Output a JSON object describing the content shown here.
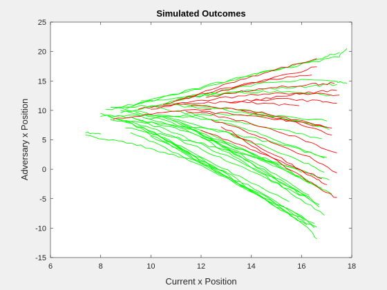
{
  "chart_data": {
    "type": "line",
    "title": "Simulated Outcomes",
    "xlabel": "Current x Position",
    "ylabel": "Adversary x Position",
    "xlim": [
      6,
      18
    ],
    "ylim": [
      -15,
      25
    ],
    "xticks": [
      6,
      8,
      10,
      12,
      14,
      16,
      18
    ],
    "yticks": [
      -15,
      -10,
      -5,
      0,
      5,
      10,
      15,
      20,
      25
    ],
    "grid": false,
    "legend": "none",
    "colors": {
      "series_a": "#00ff00",
      "series_b": "#ff0000",
      "axes_background": "#ffffff",
      "figure_background": "#f0f0f0"
    },
    "series": [
      {
        "color": "#00ff00",
        "traces": [
          {
            "x": [
              7.4,
              8.5,
              9.6,
              10.7,
              11.9,
              13.0
            ],
            "y": [
              5.8,
              4.9,
              4.0,
              2.6,
              1.2,
              -0.4
            ]
          },
          {
            "x": [
              7.4,
              8.0
            ],
            "y": [
              6.2,
              6.0
            ]
          },
          {
            "x": [
              8.0,
              9.2,
              10.5,
              11.8,
              13.2,
              14.6,
              16.0
            ],
            "y": [
              9.5,
              8.8,
              7.5,
              5.8,
              3.9,
              1.8,
              -0.5
            ]
          },
          {
            "x": [
              8.3,
              9.6,
              10.9,
              12.3,
              13.7,
              15.1,
              16.3
            ],
            "y": [
              9.0,
              7.6,
              5.5,
              2.8,
              0.2,
              -2.6,
              -5.0
            ]
          },
          {
            "x": [
              8.6,
              9.9,
              11.2,
              12.6,
              14.0,
              15.5
            ],
            "y": [
              8.6,
              6.6,
              3.9,
              0.8,
              -2.3,
              -5.5
            ]
          },
          {
            "x": [
              9.0,
              10.3,
              11.7,
              13.1,
              14.5,
              16.0,
              16.6
            ],
            "y": [
              8.2,
              5.6,
              2.4,
              -1.1,
              -4.6,
              -8.3,
              -9.8
            ]
          },
          {
            "x": [
              9.5,
              10.8,
              12.2,
              13.6,
              15.0,
              16.2,
              16.6
            ],
            "y": [
              7.4,
              4.5,
              1.0,
              -2.8,
              -6.4,
              -9.6,
              -11.8
            ]
          },
          {
            "x": [
              9.8,
              11.1,
              12.5,
              13.9,
              15.2,
              16.2
            ],
            "y": [
              6.4,
              3.4,
              -0.2,
              -3.6,
              -6.9,
              -9.4
            ]
          },
          {
            "x": [
              10.0,
              11.4,
              12.8,
              14.2,
              15.6,
              16.5
            ],
            "y": [
              5.6,
              2.6,
              -0.8,
              -4.2,
              -7.6,
              -9.9
            ]
          },
          {
            "x": [
              9.2,
              10.6,
              12.0,
              13.5,
              14.9,
              16.2
            ],
            "y": [
              8.9,
              6.7,
              4.2,
              1.4,
              -1.5,
              -4.5
            ]
          },
          {
            "x": [
              8.8,
              10.2,
              11.6,
              13.1,
              14.6,
              16.1,
              16.8
            ],
            "y": [
              10.0,
              8.3,
              6.2,
              3.8,
              1.2,
              -1.8,
              -3.2
            ]
          },
          {
            "x": [
              8.4,
              9.8,
              11.3,
              12.8,
              14.4,
              15.9,
              16.9
            ],
            "y": [
              10.5,
              9.6,
              8.2,
              6.4,
              4.1,
              1.5,
              -0.5
            ]
          },
          {
            "x": [
              8.2,
              9.6,
              11.1,
              12.6,
              14.2,
              15.8,
              17.0
            ],
            "y": [
              10.2,
              10.7,
              10.8,
              10.3,
              9.4,
              8.2,
              7.2
            ]
          },
          {
            "x": [
              8.6,
              10.0,
              11.5,
              13.0,
              14.5,
              16.0,
              17.2
            ],
            "y": [
              10.4,
              11.6,
              12.4,
              13.0,
              13.2,
              13.0,
              12.6
            ]
          },
          {
            "x": [
              9.0,
              10.4,
              11.9,
              13.4,
              14.9,
              16.3,
              17.5,
              17.8
            ],
            "y": [
              10.3,
              12.1,
              13.8,
              15.4,
              16.8,
              18.1,
              19.2,
              20.5
            ]
          },
          {
            "x": [
              8.8,
              10.1,
              11.5,
              13.0,
              14.5,
              16.0,
              17.4,
              17.8
            ],
            "y": [
              9.6,
              10.8,
              12.1,
              13.5,
              14.6,
              15.2,
              14.9,
              14.6
            ]
          },
          {
            "x": [
              8.0,
              9.4,
              10.8,
              12.3,
              13.8,
              15.3,
              16.8
            ],
            "y": [
              9.0,
              9.1,
              9.0,
              8.6,
              7.8,
              6.6,
              5.2
            ]
          },
          {
            "x": [
              8.4,
              9.8,
              11.2,
              12.7,
              14.2,
              15.7,
              17.0
            ],
            "y": [
              8.4,
              8.0,
              7.4,
              6.5,
              5.2,
              3.6,
              2.0
            ]
          },
          {
            "x": [
              9.4,
              10.8,
              12.2,
              13.7,
              15.1,
              16.5
            ],
            "y": [
              9.7,
              8.0,
              5.8,
              3.2,
              0.4,
              -2.6
            ]
          },
          {
            "x": [
              10.2,
              11.6,
              13.0,
              14.4,
              15.8,
              16.9
            ],
            "y": [
              10.6,
              9.4,
              7.8,
              5.9,
              3.7,
              1.9
            ]
          },
          {
            "x": [
              10.6,
              12.0,
              13.4,
              14.8,
              16.2,
              17.1
            ],
            "y": [
              11.2,
              10.9,
              10.2,
              9.2,
              7.9,
              6.8
            ]
          },
          {
            "x": [
              11.0,
              12.4,
              13.8,
              15.2,
              16.6,
              17.4
            ],
            "y": [
              11.8,
              12.6,
              13.3,
              13.8,
              14.2,
              14.4
            ]
          },
          {
            "x": [
              9.6,
              11.0,
              12.4,
              13.9,
              15.4,
              16.8,
              17.5
            ],
            "y": [
              11.6,
              12.8,
              14.2,
              15.8,
              17.4,
              18.9,
              19.8
            ]
          },
          {
            "x": [
              10.4,
              11.8,
              13.2,
              14.6,
              16.0,
              17.2
            ],
            "y": [
              9.0,
              6.9,
              4.4,
              1.6,
              -1.4,
              -4.2
            ]
          },
          {
            "x": [
              10.8,
              12.2,
              13.6,
              15.0,
              16.3
            ],
            "y": [
              8.4,
              5.6,
              2.4,
              -1.0,
              -4.4
            ]
          },
          {
            "x": [
              11.2,
              12.6,
              14.0,
              15.4,
              16.7
            ],
            "y": [
              7.8,
              4.6,
              1.1,
              -2.5,
              -6.0
            ]
          },
          {
            "x": [
              9.0,
              10.4,
              11.8,
              13.3,
              14.8,
              16.3,
              17.1
            ],
            "y": [
              7.0,
              5.9,
              4.6,
              3.0,
              1.3,
              -0.6,
              -1.8
            ]
          },
          {
            "x": [
              9.8,
              11.2,
              12.6,
              14.1,
              15.6,
              17.0
            ],
            "y": [
              8.6,
              9.1,
              9.3,
              9.2,
              8.8,
              8.2
            ]
          },
          {
            "x": [
              9.2,
              10.6,
              12.0,
              13.5,
              15.0,
              16.5
            ],
            "y": [
              6.2,
              3.6,
              0.6,
              -2.6,
              -5.9,
              -9.2
            ]
          },
          {
            "x": [
              11.6,
              12.9,
              14.2,
              15.5,
              16.7
            ],
            "y": [
              6.8,
              3.8,
              0.4,
              -3.0,
              -6.4
            ]
          },
          {
            "x": [
              12.0,
              13.3,
              14.6,
              15.8,
              16.9
            ],
            "y": [
              5.4,
              2.2,
              -1.2,
              -4.6,
              -7.8
            ]
          },
          {
            "x": [
              10.6,
              12.0,
              13.4,
              14.8,
              16.1
            ],
            "y": [
              4.8,
              1.8,
              -1.6,
              -5.0,
              -8.4
            ]
          }
        ]
      },
      {
        "color": "#ff0000",
        "traces": [
          {
            "x": [
              10.0,
              11.5,
              13.0,
              14.5,
              16.0,
              17.5
            ],
            "y": [
              10.2,
              11.4,
              12.2,
              12.8,
              12.9,
              12.6
            ]
          },
          {
            "x": [
              10.5,
              12.0,
              13.5,
              15.0,
              16.4
            ],
            "y": [
              11.0,
              12.8,
              14.2,
              15.4,
              16.0
            ]
          },
          {
            "x": [
              11.0,
              12.4,
              13.8,
              15.2,
              16.6
            ],
            "y": [
              11.6,
              13.6,
              15.5,
              17.2,
              18.8
            ]
          },
          {
            "x": [
              11.6,
              13.0,
              14.4,
              15.8,
              17.2
            ],
            "y": [
              10.8,
              10.4,
              9.6,
              8.4,
              7.0
            ]
          },
          {
            "x": [
              12.0,
              13.4,
              14.8,
              16.2,
              17.4
            ],
            "y": [
              9.6,
              8.4,
              6.8,
              4.8,
              2.8
            ]
          },
          {
            "x": [
              12.4,
              13.7,
              15.0,
              16.3,
              17.4
            ],
            "y": [
              8.4,
              6.6,
              4.4,
              2.0,
              -0.6
            ]
          },
          {
            "x": [
              12.8,
              14.0,
              15.2,
              16.4,
              17.0
            ],
            "y": [
              7.2,
              4.6,
              1.8,
              -1.2,
              -2.6
            ]
          },
          {
            "x": [
              13.2,
              14.4,
              15.6,
              16.8,
              17.4
            ],
            "y": [
              6.0,
              3.0,
              -0.2,
              -3.4,
              -4.8
            ]
          },
          {
            "x": [
              12.2,
              13.6,
              15.0,
              16.4,
              17.3
            ],
            "y": [
              12.2,
              13.2,
              14.0,
              14.4,
              14.6
            ]
          },
          {
            "x": [
              12.6,
              14.0,
              15.4,
              16.6
            ],
            "y": [
              13.0,
              14.6,
              16.0,
              17.4
            ]
          },
          {
            "x": [
              11.4,
              12.8,
              14.2,
              15.6,
              16.9
            ],
            "y": [
              9.8,
              9.6,
              9.0,
              8.2,
              7.2
            ]
          },
          {
            "x": [
              13.6,
              14.8,
              16.0,
              17.2
            ],
            "y": [
              10.0,
              9.0,
              7.6,
              5.8
            ]
          },
          {
            "x": [
              14.0,
              15.2,
              16.3,
              17.4
            ],
            "y": [
              11.6,
              12.4,
              13.0,
              13.4
            ]
          },
          {
            "x": [
              8.5,
              9.8,
              11.1,
              12.4
            ],
            "y": [
              8.5,
              9.2,
              9.8,
              10.2
            ]
          },
          {
            "x": [
              9.5,
              10.8,
              12.1,
              13.4,
              14.7,
              15.9
            ],
            "y": [
              10.2,
              10.9,
              11.3,
              11.4,
              11.2,
              10.8
            ]
          },
          {
            "x": [
              13.0,
              14.2,
              15.4,
              16.6,
              17.4
            ],
            "y": [
              11.4,
              11.8,
              11.9,
              11.6,
              11.2
            ]
          },
          {
            "x": [
              12.0,
              13.3,
              14.6,
              15.8,
              16.8
            ],
            "y": [
              6.6,
              4.6,
              2.4,
              0.2,
              -1.6
            ]
          }
        ]
      }
    ]
  }
}
